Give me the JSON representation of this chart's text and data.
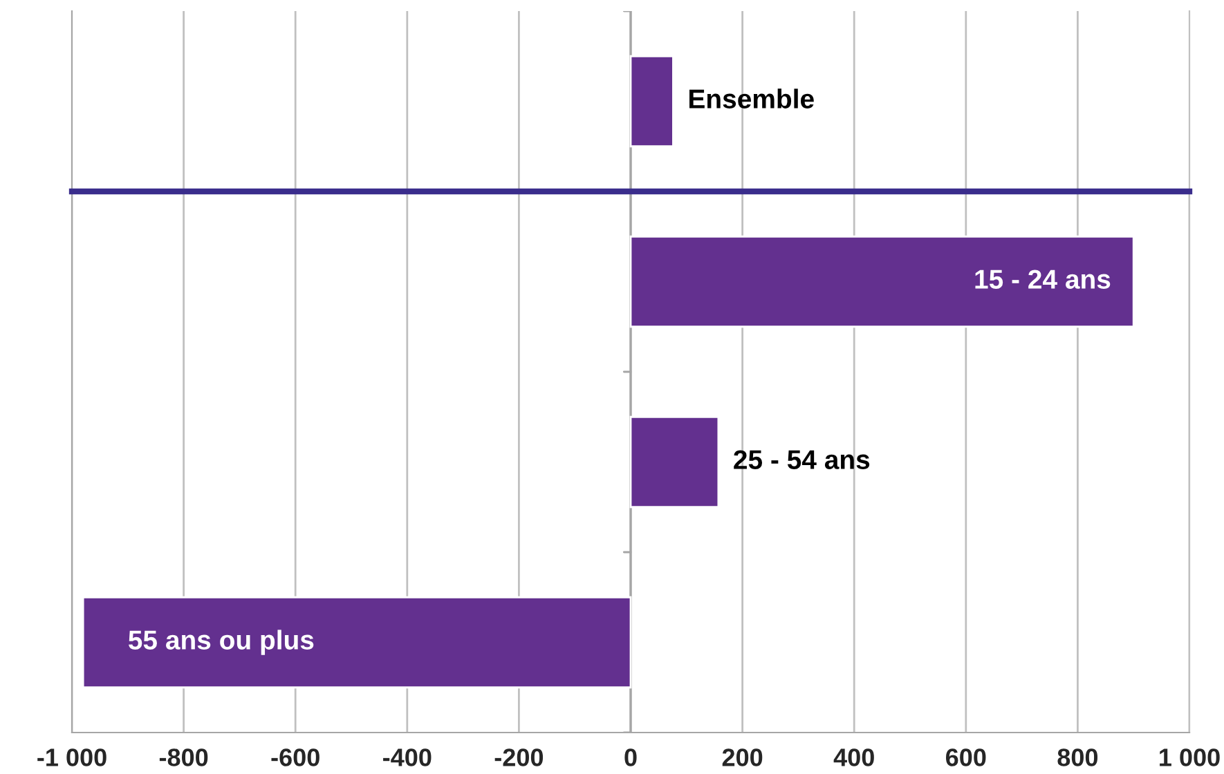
{
  "chart_data": [
    {
      "type": "bar",
      "orientation": "horizontal",
      "categories": [
        "Ensemble"
      ],
      "values": [
        76
      ],
      "color": "#63308f",
      "xlim": [
        -1000,
        1000
      ],
      "xticks": [
        -800,
        -600,
        -400,
        -200,
        0,
        200,
        400,
        600,
        800
      ],
      "grid": "x",
      "tick_labels": "y"
    },
    {
      "type": "bar",
      "orientation": "horizontal",
      "categories": [
        "15 - 24 ans",
        "25 - 54 ans",
        "55 ans ou plus"
      ],
      "values": [
        900,
        157,
        -980
      ],
      "color": "#63308f",
      "xlim": [
        -1000,
        1000
      ],
      "xticks": [
        {
          "value": -1000,
          "label": "-1 000"
        },
        -800,
        -600,
        -400,
        -200,
        0,
        200,
        400,
        600,
        800,
        {
          "value": 1000,
          "label": "1 000"
        }
      ],
      "grid": "x"
    }
  ]
}
